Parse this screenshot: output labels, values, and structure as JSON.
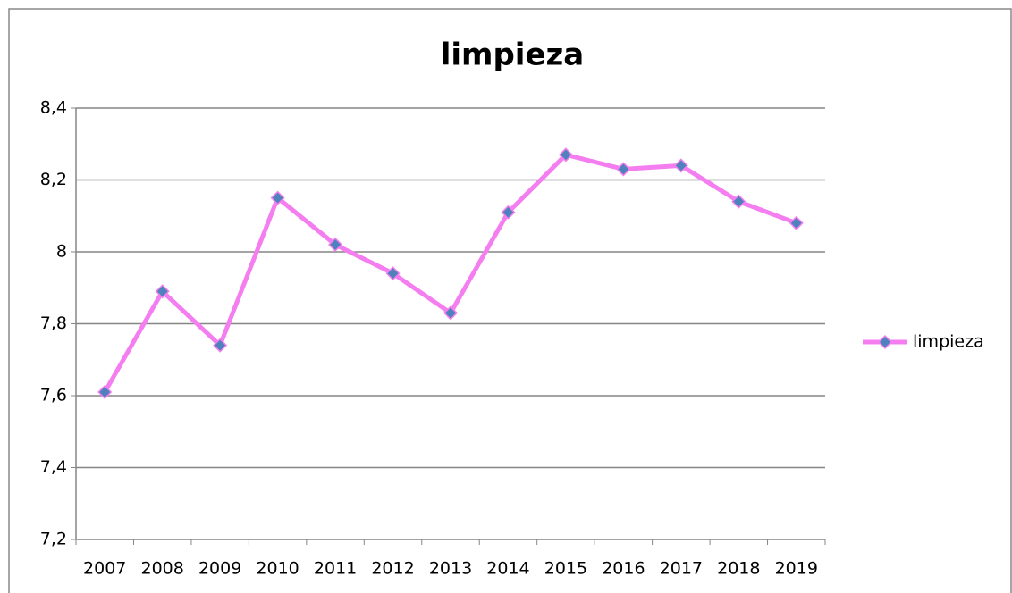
{
  "chart_data": {
    "type": "line",
    "title": "limpieza",
    "categories": [
      "2007",
      "2008",
      "2009",
      "2010",
      "2011",
      "2012",
      "2013",
      "2014",
      "2015",
      "2016",
      "2017",
      "2018",
      "2019"
    ],
    "series": [
      {
        "name": "limpieza",
        "color": "#f47ef0",
        "marker_color": "#4f81bd",
        "values": [
          7.61,
          7.89,
          7.74,
          8.15,
          8.02,
          7.94,
          7.83,
          8.11,
          8.27,
          8.23,
          8.24,
          8.14,
          8.08
        ]
      }
    ],
    "ylim": [
      7.2,
      8.4
    ],
    "yticks": [
      {
        "value": 7.2,
        "label": "7,2"
      },
      {
        "value": 7.4,
        "label": "7,4"
      },
      {
        "value": 7.6,
        "label": "7,6"
      },
      {
        "value": 7.8,
        "label": "7,8"
      },
      8,
      {
        "value": 8.2,
        "label": "8,2"
      },
      {
        "value": 8.4,
        "label": "8,4"
      }
    ],
    "grid": true,
    "legend": "right"
  }
}
